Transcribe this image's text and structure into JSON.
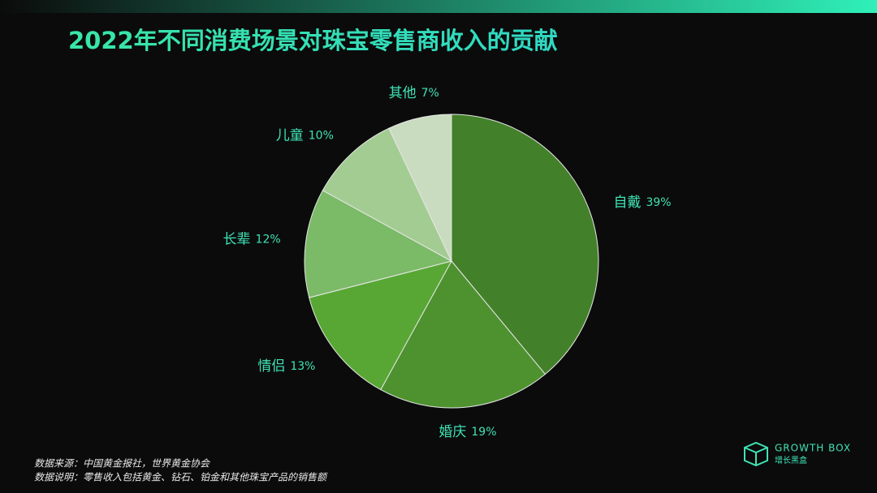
{
  "chart_data": {
    "type": "pie",
    "title": "2022年不同消费场景对珠宝零售商收入的贡献",
    "categories": [
      "自戴",
      "婚庆",
      "情侣",
      "长辈",
      "儿童",
      "其他"
    ],
    "values": [
      39,
      19,
      13,
      12,
      10,
      7
    ],
    "value_labels": [
      "39%",
      "19%",
      "13%",
      "12%",
      "10%",
      "7%"
    ],
    "colors": [
      "#43802a",
      "#4d922f",
      "#58a735",
      "#7bba67",
      "#a3cc92",
      "#c9dcbf"
    ],
    "notes": [
      "数据来源：中国黄金报社，世界黄金协会",
      "数据说明：零售收入包括黄金、钻石、铂金和其他珠宝产品的销售额"
    ],
    "logo": {
      "name": "GROWTH BOX",
      "subtitle": "增长黑盒"
    }
  }
}
